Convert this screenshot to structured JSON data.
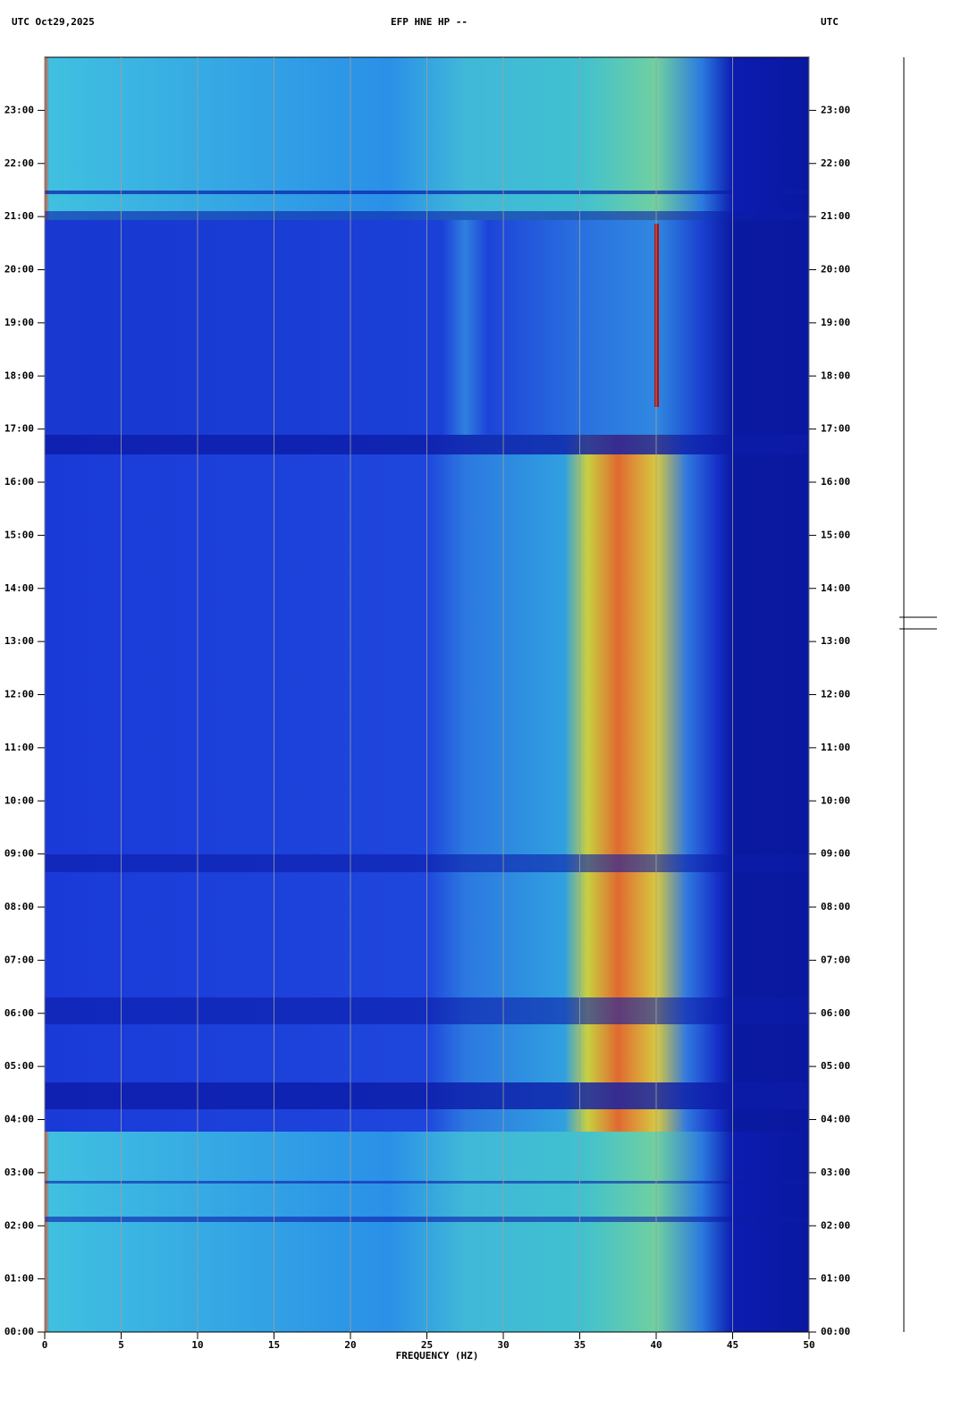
{
  "chart_data": {
    "type": "spectrogram",
    "title": "EFP HNE HP --",
    "header_left": "UTC  Oct29,2025",
    "header_right": "UTC",
    "x_label": "FREQUENCY (HZ)",
    "xlim": [
      0,
      50
    ],
    "xticks": [
      0,
      5,
      10,
      15,
      20,
      25,
      30,
      35,
      40,
      45,
      50
    ],
    "ylim": [
      0,
      24
    ],
    "yticks": [
      {
        "value": 0,
        "label": "00:00"
      },
      {
        "value": 1,
        "label": "01:00"
      },
      {
        "value": 2,
        "label": "02:00"
      },
      {
        "value": 3,
        "label": "03:00"
      },
      {
        "value": 4,
        "label": "04:00"
      },
      {
        "value": 5,
        "label": "05:00"
      },
      {
        "value": 6,
        "label": "06:00"
      },
      {
        "value": 7,
        "label": "07:00"
      },
      {
        "value": 8,
        "label": "08:00"
      },
      {
        "value": 9,
        "label": "09:00"
      },
      {
        "value": 10,
        "label": "10:00"
      },
      {
        "value": 11,
        "label": "11:00"
      },
      {
        "value": 12,
        "label": "12:00"
      },
      {
        "value": 13,
        "label": "13:00"
      },
      {
        "value": 14,
        "label": "14:00"
      },
      {
        "value": 15,
        "label": "15:00"
      },
      {
        "value": 16,
        "label": "16:00"
      },
      {
        "value": 17,
        "label": "17:00"
      },
      {
        "value": 18,
        "label": "18:00"
      },
      {
        "value": 19,
        "label": "19:00"
      },
      {
        "value": 20,
        "label": "20:00"
      },
      {
        "value": 21,
        "label": "21:00"
      },
      {
        "value": 22,
        "label": "22:00"
      },
      {
        "value": 23,
        "label": "23:00"
      }
    ],
    "grid": true
  }
}
